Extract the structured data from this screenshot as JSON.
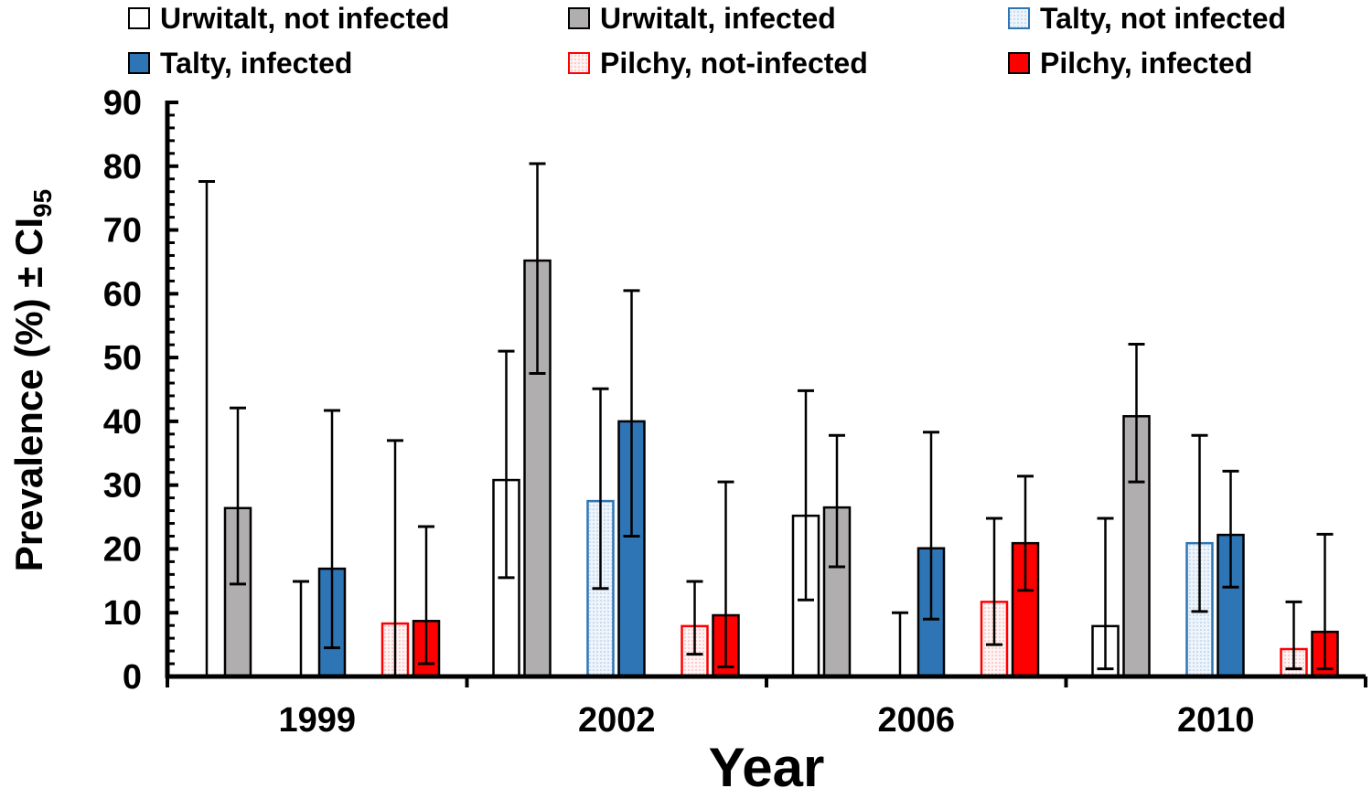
{
  "chart_data": {
    "type": "bar",
    "xlabel": "Year",
    "ylabel": "Prevalence (%) ± CI",
    "ylabel_subscript": "95",
    "ylim": [
      0,
      90
    ],
    "yticks": [
      0,
      10,
      20,
      30,
      40,
      50,
      60,
      70,
      80,
      90
    ],
    "categories": [
      "1999",
      "2002",
      "2006",
      "2010"
    ],
    "legend_placement": "top",
    "grid": false,
    "series": [
      {
        "name": "Urwitalt, not infected",
        "color": "#ffffff",
        "stroke": "#000000",
        "pattern": "none",
        "values": [
          0,
          30.8,
          25.2,
          7.9
        ],
        "ci_low": [
          0,
          15.5,
          12.0,
          1.2
        ],
        "ci_high": [
          77.6,
          51.0,
          44.8,
          24.8
        ]
      },
      {
        "name": "Urwitalt, infected",
        "color": "#b0aeae",
        "stroke": "#000000",
        "pattern": "none",
        "values": [
          26.4,
          65.2,
          26.5,
          40.8
        ],
        "ci_low": [
          14.5,
          47.5,
          17.2,
          30.5
        ],
        "ci_high": [
          42.1,
          80.4,
          37.8,
          52.1
        ]
      },
      {
        "name": "Talty, not infected",
        "color": "#dde9f5",
        "stroke": "#2e75b6",
        "pattern": "dots",
        "values": [
          0,
          27.5,
          0,
          20.9
        ],
        "ci_low": [
          0,
          13.8,
          0,
          10.2
        ],
        "ci_high": [
          14.9,
          45.1,
          10.0,
          37.8
        ]
      },
      {
        "name": "Talty, infected",
        "color": "#2e75b6",
        "stroke": "#000000",
        "pattern": "none",
        "values": [
          16.9,
          40.0,
          20.1,
          22.2
        ],
        "ci_low": [
          4.5,
          22.0,
          9.0,
          14.0
        ],
        "ci_high": [
          41.7,
          60.5,
          38.3,
          32.2
        ]
      },
      {
        "name": "Pilchy, not-infected",
        "color": "#fde4e4",
        "stroke": "#ff0000",
        "pattern": "dots",
        "values": [
          8.3,
          7.9,
          11.7,
          4.3
        ],
        "ci_low": [
          0,
          3.5,
          5.0,
          1.2
        ],
        "ci_high": [
          37.0,
          14.9,
          24.8,
          11.7
        ]
      },
      {
        "name": "Pilchy, infected",
        "color": "#ff0000",
        "stroke": "#000000",
        "pattern": "none",
        "values": [
          8.7,
          9.6,
          20.9,
          7.0
        ],
        "ci_low": [
          2.0,
          1.5,
          13.5,
          1.2
        ],
        "ci_high": [
          23.5,
          30.5,
          31.4,
          22.3
        ]
      }
    ]
  }
}
